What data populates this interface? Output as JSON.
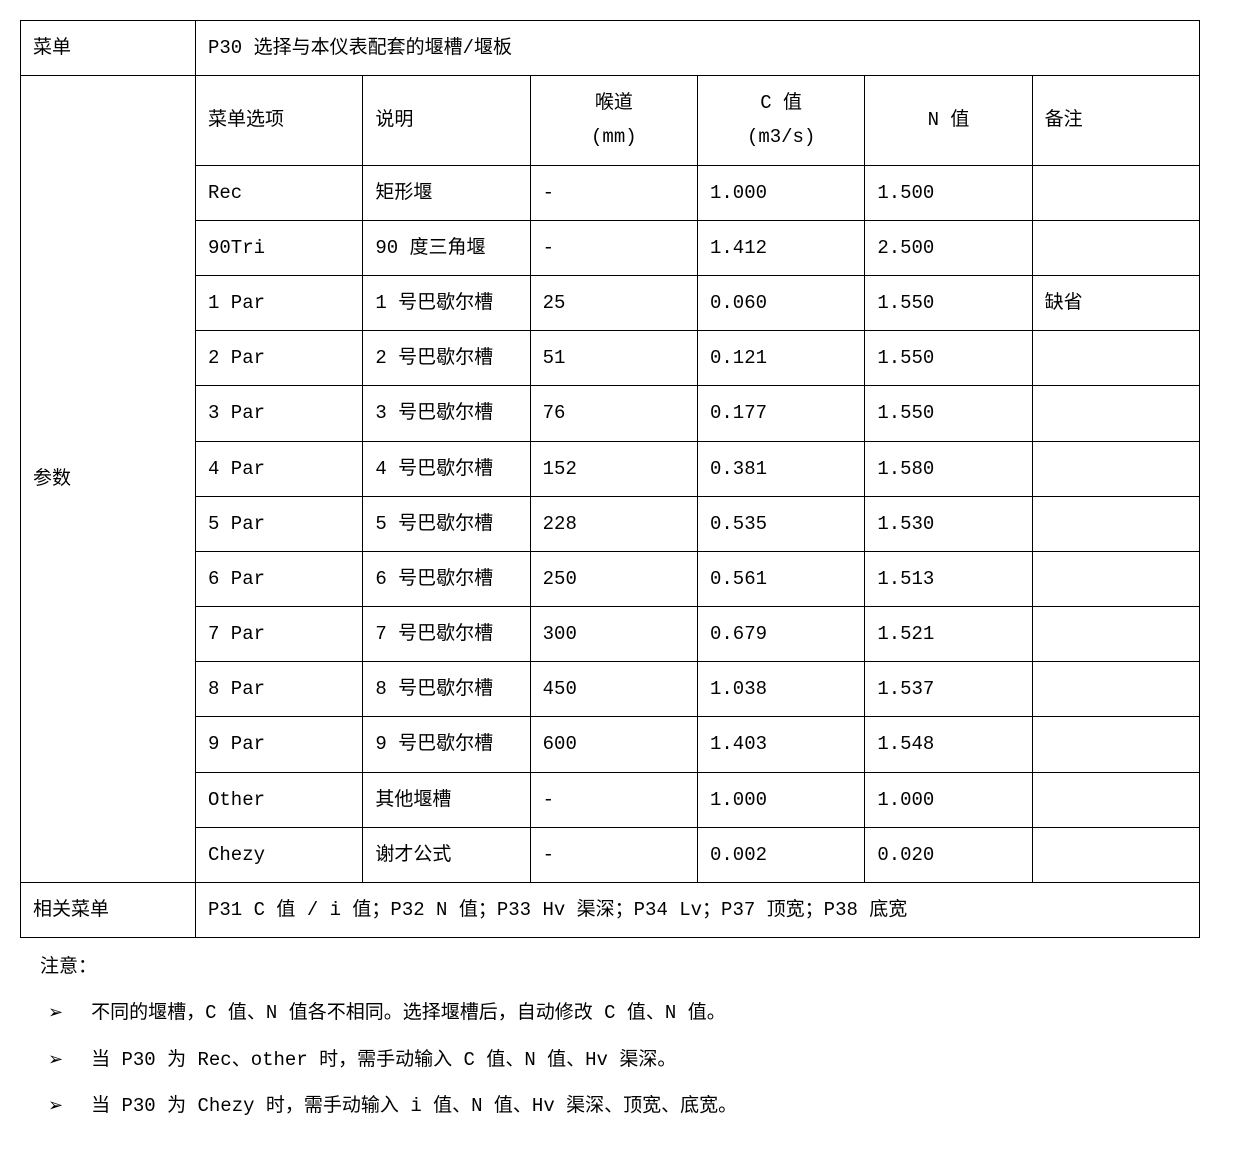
{
  "header": {
    "menu_label": "菜单",
    "menu_value": "P30 选择与本仪表配套的堰槽/堰板"
  },
  "table": {
    "side_label": "参数",
    "columns": {
      "opt": "菜单选项",
      "desc": "说明",
      "throat_l1": "喉道",
      "throat_l2": "(mm)",
      "cval_l1": "C 值",
      "cval_l2": "(m3/s)",
      "nval": "N 值",
      "note": "备注"
    },
    "rows": [
      {
        "opt": "Rec",
        "desc": "矩形堰",
        "throat": "-",
        "cval": "1.000",
        "nval": "1.500",
        "note": ""
      },
      {
        "opt": "90Tri",
        "desc": "90 度三角堰",
        "throat": "-",
        "cval": "1.412",
        "nval": "2.500",
        "note": ""
      },
      {
        "opt": "1 Par",
        "desc": "1 号巴歇尔槽",
        "throat": "25",
        "cval": "0.060",
        "nval": "1.550",
        "note": "缺省"
      },
      {
        "opt": "2 Par",
        "desc": "2 号巴歇尔槽",
        "throat": "51",
        "cval": "0.121",
        "nval": "1.550",
        "note": ""
      },
      {
        "opt": "3 Par",
        "desc": "3 号巴歇尔槽",
        "throat": "76",
        "cval": "0.177",
        "nval": "1.550",
        "note": ""
      },
      {
        "opt": "4 Par",
        "desc": "4 号巴歇尔槽",
        "throat": "152",
        "cval": "0.381",
        "nval": "1.580",
        "note": ""
      },
      {
        "opt": "5 Par",
        "desc": "5 号巴歇尔槽",
        "throat": "228",
        "cval": "0.535",
        "nval": "1.530",
        "note": ""
      },
      {
        "opt": "6 Par",
        "desc": "6 号巴歇尔槽",
        "throat": "250",
        "cval": "0.561",
        "nval": "1.513",
        "note": ""
      },
      {
        "opt": "7 Par",
        "desc": "7 号巴歇尔槽",
        "throat": "300",
        "cval": "0.679",
        "nval": "1.521",
        "note": ""
      },
      {
        "opt": "8 Par",
        "desc": "8 号巴歇尔槽",
        "throat": "450",
        "cval": "1.038",
        "nval": "1.537",
        "note": ""
      },
      {
        "opt": "9 Par",
        "desc": "9 号巴歇尔槽",
        "throat": "600",
        "cval": "1.403",
        "nval": "1.548",
        "note": ""
      },
      {
        "opt": "Other",
        "desc": "其他堰槽",
        "throat": "-",
        "cval": "1.000",
        "nval": "1.000",
        "note": ""
      },
      {
        "opt": "Chezy",
        "desc": "谢才公式",
        "throat": "-",
        "cval": "0.002",
        "nval": "0.020",
        "note": ""
      }
    ]
  },
  "footer": {
    "related_label": "相关菜单",
    "related_value": "P31 C 值 / i 值；P32 N 值；P33 Hv 渠深；P34 Lv；P37 顶宽；P38 底宽"
  },
  "notes": {
    "title": "注意：",
    "bullet": "➢",
    "items": [
      "不同的堰槽，C 值、N 值各不相同。选择堰槽后，自动修改 C 值、N 值。",
      "当 P30 为 Rec、other 时，需手动输入 C 值、N 值、Hv 渠深。",
      "当 P30 为 Chezy 时，需手动输入 i 值、N 值、Hv 渠深、顶宽、底宽。"
    ]
  },
  "style": {
    "border_color": "#000000",
    "background_color": "#ffffff",
    "text_color": "#000000",
    "font_size": 19
  }
}
